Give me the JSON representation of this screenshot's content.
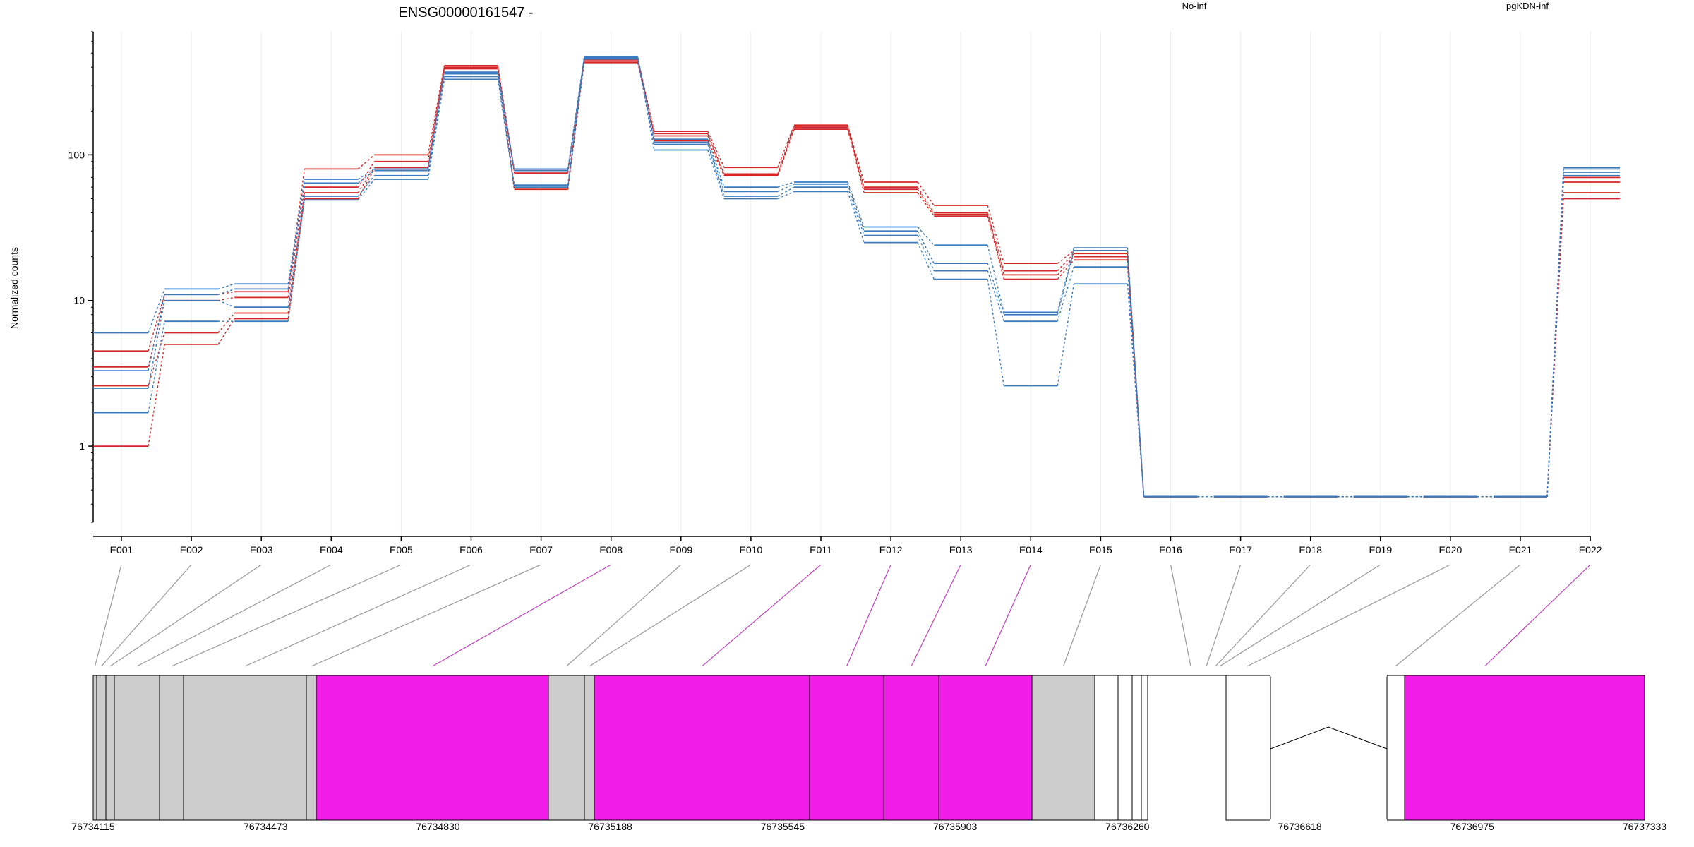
{
  "chart_data": {
    "type": "line",
    "title": "ENSG00000161547 -",
    "ylabel": "Normalized counts",
    "xlabel": "",
    "yscale": "log",
    "ylim": [
      0.3,
      700
    ],
    "ytick_values": [
      1,
      10,
      100
    ],
    "ytick_labels": [
      "1",
      "10",
      "100"
    ],
    "grid": "vertical only",
    "legend": [
      {
        "label": "No-inf",
        "color": "#d62728",
        "position": "top-center"
      },
      {
        "label": "pgKDN-inf",
        "color": "#3a7bbf",
        "position": "top-right"
      }
    ],
    "categories": [
      "E001",
      "E002",
      "E003",
      "E004",
      "E005",
      "E006",
      "E007",
      "E008",
      "E009",
      "E010",
      "E011",
      "E012",
      "E013",
      "E014",
      "E015",
      "E016",
      "E017",
      "E018",
      "E019",
      "E020",
      "E021",
      "E022"
    ],
    "series": [
      {
        "group": "No-inf",
        "color": "#d62728",
        "values": [
          1.0,
          5.0,
          7.5,
          50,
          80,
          390,
          58,
          430,
          125,
          72,
          150,
          55,
          38,
          14,
          19,
          0.45,
          0.45,
          0.45,
          0.45,
          0.45,
          0.45,
          50
        ]
      },
      {
        "group": "No-inf",
        "color": "#d62728",
        "values": [
          2.6,
          6.0,
          8.2,
          55,
          82,
          395,
          62,
          440,
          135,
          73,
          155,
          58,
          39,
          15,
          20,
          0.45,
          0.45,
          0.45,
          0.45,
          0.45,
          0.45,
          55
        ]
      },
      {
        "group": "No-inf",
        "color": "#d62728",
        "values": [
          3.5,
          10,
          10.5,
          60,
          90,
          400,
          75,
          450,
          140,
          74,
          158,
          60,
          40,
          16,
          21,
          0.45,
          0.45,
          0.45,
          0.45,
          0.45,
          0.45,
          65
        ]
      },
      {
        "group": "No-inf",
        "color": "#d62728",
        "values": [
          4.5,
          11,
          11.5,
          80,
          100,
          410,
          78,
          460,
          145,
          82,
          160,
          65,
          45,
          18,
          22,
          0.45,
          0.45,
          0.45,
          0.45,
          0.45,
          0.45,
          70
        ]
      },
      {
        "group": "pgKDN-inf",
        "color": "#3a7bbf",
        "values": [
          1.7,
          7.2,
          7.2,
          49,
          68,
          330,
          60,
          455,
          108,
          50,
          56,
          25,
          14,
          2.6,
          13,
          0.45,
          0.45,
          0.45,
          0.45,
          0.45,
          0.45,
          72
        ]
      },
      {
        "group": "pgKDN-inf",
        "color": "#3a7bbf",
        "values": [
          2.5,
          10,
          9.0,
          52,
          72,
          345,
          62,
          460,
          118,
          52,
          60,
          28,
          16,
          7.2,
          17,
          0.45,
          0.45,
          0.45,
          0.45,
          0.45,
          0.45,
          76
        ]
      },
      {
        "group": "pgKDN-inf",
        "color": "#3a7bbf",
        "values": [
          3.3,
          11,
          12,
          64,
          78,
          360,
          78,
          465,
          122,
          56,
          63,
          30,
          18,
          8.0,
          22,
          0.45,
          0.45,
          0.45,
          0.45,
          0.45,
          0.45,
          80
        ]
      },
      {
        "group": "pgKDN-inf",
        "color": "#3a7bbf",
        "values": [
          6.0,
          12,
          13,
          68,
          80,
          370,
          80,
          470,
          128,
          60,
          65,
          32,
          24,
          8.3,
          23,
          0.45,
          0.45,
          0.45,
          0.45,
          0.45,
          0.45,
          82
        ]
      }
    ],
    "gene_model": {
      "coordinate_labels": [
        "76734115",
        "76734473",
        "76734830",
        "76735188",
        "76735545",
        "76735903",
        "76736260",
        "76736618",
        "76736975",
        "76737333"
      ],
      "exon_states": [
        "grey",
        "grey",
        "grey",
        "grey",
        "grey",
        "grey",
        "grey",
        "magenta",
        "grey",
        "grey",
        "magenta",
        "magenta",
        "magenta",
        "magenta",
        "grey",
        "white",
        "white",
        "white",
        "white",
        "white",
        "white",
        "magenta"
      ],
      "exon_colors": {
        "grey": "#cccccc",
        "magenta": "#f21ce8",
        "white": "#ffffff"
      },
      "connector_colors": {
        "grey": "#999999",
        "magenta": "#c23fbf",
        "white": "#999999"
      }
    }
  }
}
